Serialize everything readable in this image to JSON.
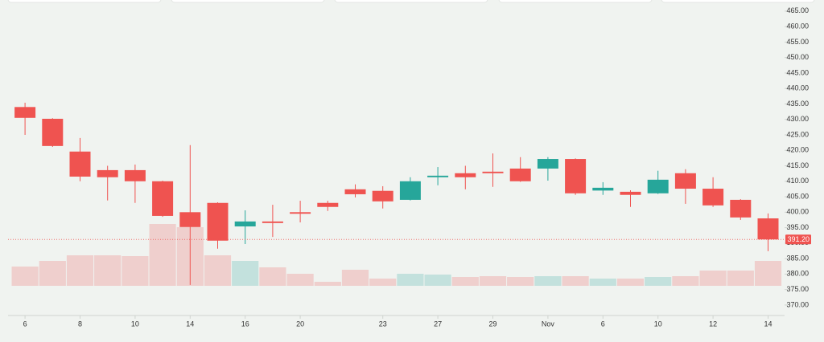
{
  "chart_data": {
    "type": "candlestick",
    "categories": [
      "6",
      null,
      "8",
      null,
      "10",
      null,
      "14",
      null,
      "16",
      null,
      "20",
      null,
      null,
      "23",
      null,
      "27",
      null,
      "29",
      null,
      "Nov",
      null,
      "6",
      null,
      "10",
      null,
      "12",
      null,
      "14"
    ],
    "open": [
      434.0,
      430.2,
      419.6,
      413.6,
      413.6,
      410.0,
      400.0,
      403.0,
      395.4,
      397.0,
      400.0,
      403.0,
      407.4,
      406.9,
      404.0,
      411.3,
      412.6,
      413.1,
      414.1,
      414.1,
      417.2,
      407.0,
      406.6,
      406.1,
      412.6,
      407.6,
      404.0,
      398.0
    ],
    "high": [
      435.4,
      430.4,
      424.0,
      415.0,
      415.4,
      410.2,
      421.7,
      403.2,
      400.6,
      402.4,
      403.7,
      403.7,
      409.0,
      408.4,
      411.3,
      414.6,
      415.0,
      419.0,
      417.8,
      417.8,
      417.4,
      409.7,
      407.1,
      413.4,
      413.9,
      411.3,
      404.2,
      399.6
    ],
    "low": [
      425.0,
      421.1,
      410.0,
      403.8,
      403.0,
      398.5,
      376.5,
      388.2,
      389.7,
      392.0,
      396.7,
      400.4,
      404.8,
      401.2,
      403.8,
      408.7,
      407.4,
      408.2,
      409.8,
      410.2,
      405.6,
      405.6,
      401.7,
      405.9,
      402.7,
      401.7,
      397.5,
      387.4
    ],
    "close": [
      430.5,
      421.4,
      411.5,
      411.3,
      410.0,
      398.8,
      395.2,
      390.8,
      397.0,
      396.5,
      399.5,
      401.7,
      405.8,
      403.5,
      410.0,
      411.8,
      411.3,
      412.6,
      410.0,
      417.2,
      406.1,
      407.9,
      405.6,
      410.5,
      407.6,
      402.2,
      398.3,
      391.2
    ],
    "volume": [
      24,
      31,
      38,
      38,
      37,
      77,
      73,
      38,
      31,
      23,
      15,
      5,
      20,
      9,
      15,
      14,
      11,
      12,
      11,
      12,
      12,
      9,
      9,
      11,
      12,
      19,
      19,
      31
    ],
    "volume_lim": [
      0,
      100
    ],
    "up_color": "#26a69a",
    "down_color": "#ef5350",
    "ylim": [
      366.6,
      467.3
    ],
    "yticks": [
      {
        "value": 370,
        "label": "370.00"
      },
      {
        "value": 375,
        "label": "375.00"
      },
      {
        "value": 380,
        "label": "380.00"
      },
      {
        "value": 385,
        "label": "385.00"
      },
      {
        "value": 390,
        "label": "390.00"
      },
      {
        "value": 395,
        "label": "395.00"
      },
      {
        "value": 400,
        "label": "400.00"
      },
      {
        "value": 405,
        "label": "405.00"
      },
      {
        "value": 410,
        "label": "410.00"
      },
      {
        "value": 415,
        "label": "415.00"
      },
      {
        "value": 420,
        "label": "420.00"
      },
      {
        "value": 425,
        "label": "425.00"
      },
      {
        "value": 430,
        "label": "430.00"
      },
      {
        "value": 435,
        "label": "435.00"
      },
      {
        "value": 440,
        "label": "440.00"
      },
      {
        "value": 445,
        "label": "445.00"
      },
      {
        "value": 450,
        "label": "450.00"
      },
      {
        "value": 455,
        "label": "455.00"
      },
      {
        "value": 460,
        "label": "460.00"
      },
      {
        "value": 465,
        "label": "465.00"
      }
    ],
    "last_price": {
      "value": 391.2,
      "label": "391.20"
    },
    "grid": false
  }
}
